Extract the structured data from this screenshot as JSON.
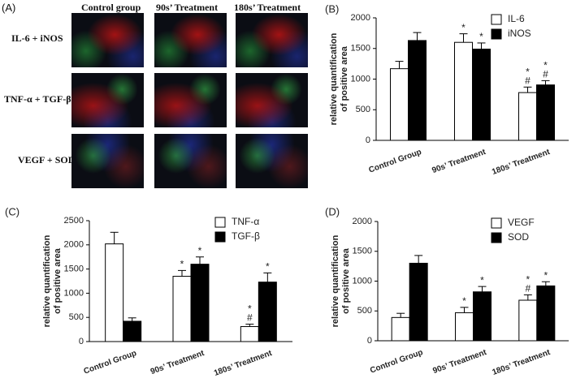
{
  "panel_a": {
    "label": "(A)",
    "columns": [
      "Control group",
      "90s’ Treatment",
      "180s’ Treatment"
    ],
    "rows": [
      "IL-6 + iNOS",
      "TNF-α + TGF-β",
      "VEGF + SOD"
    ]
  },
  "chart_data": [
    {
      "type": "bar",
      "panel": "(B)",
      "ylabel": [
        "relative quantification",
        "of positive area"
      ],
      "categories": [
        "Control Group",
        "90s’ Treatment",
        "180s’ Treatment"
      ],
      "series": [
        {
          "name": "IL-6",
          "color": "#ffffff",
          "values": [
            1170,
            1600,
            780
          ],
          "errors": [
            120,
            140,
            90
          ],
          "annotations": [
            [],
            [
              "*"
            ],
            [
              "*",
              "#"
            ]
          ]
        },
        {
          "name": "iNOS",
          "color": "#000000",
          "values": [
            1630,
            1490,
            905
          ],
          "errors": [
            130,
            100,
            70
          ],
          "annotations": [
            [],
            [
              "*"
            ],
            [
              "*",
              "#"
            ]
          ]
        }
      ],
      "ylim": [
        0,
        2000
      ],
      "yticks": [
        0,
        500,
        1000,
        1500,
        2000
      ],
      "legend": "upper right"
    },
    {
      "type": "bar",
      "panel": "(C)",
      "ylabel": [
        "relative quantification",
        "of positive area"
      ],
      "categories": [
        "Control Group",
        "90s’ Treatment",
        "180s’ Treatment"
      ],
      "series": [
        {
          "name": "TNF-α",
          "color": "#ffffff",
          "values": [
            2020,
            1350,
            310
          ],
          "errors": [
            240,
            120,
            50
          ],
          "annotations": [
            [],
            [
              "*"
            ],
            [
              "*",
              "#"
            ]
          ]
        },
        {
          "name": "TGF-β",
          "color": "#000000",
          "values": [
            420,
            1600,
            1230
          ],
          "errors": [
            70,
            150,
            190
          ],
          "annotations": [
            [],
            [
              "*"
            ],
            [
              "*"
            ]
          ]
        }
      ],
      "ylim": [
        0,
        2500
      ],
      "yticks": [
        0,
        500,
        1000,
        1500,
        2000,
        2500
      ],
      "legend": "upper right"
    },
    {
      "type": "bar",
      "panel": "(D)",
      "ylabel": [
        "relative quantification",
        "of positive area"
      ],
      "categories": [
        "Control Group",
        "90s’ Treatment",
        "180s’ Treatment"
      ],
      "series": [
        {
          "name": "VEGF",
          "color": "#ffffff",
          "values": [
            390,
            470,
            680
          ],
          "errors": [
            70,
            90,
            90
          ],
          "annotations": [
            [],
            [
              "*"
            ],
            [
              "*",
              "#"
            ]
          ]
        },
        {
          "name": "SOD",
          "color": "#000000",
          "values": [
            1300,
            820,
            920
          ],
          "errors": [
            130,
            90,
            70
          ],
          "annotations": [
            [],
            [
              "*"
            ],
            [
              "*"
            ]
          ]
        }
      ],
      "ylim": [
        0,
        2000
      ],
      "yticks": [
        0,
        500,
        1000,
        1500,
        2000
      ],
      "legend": "upper right"
    }
  ]
}
